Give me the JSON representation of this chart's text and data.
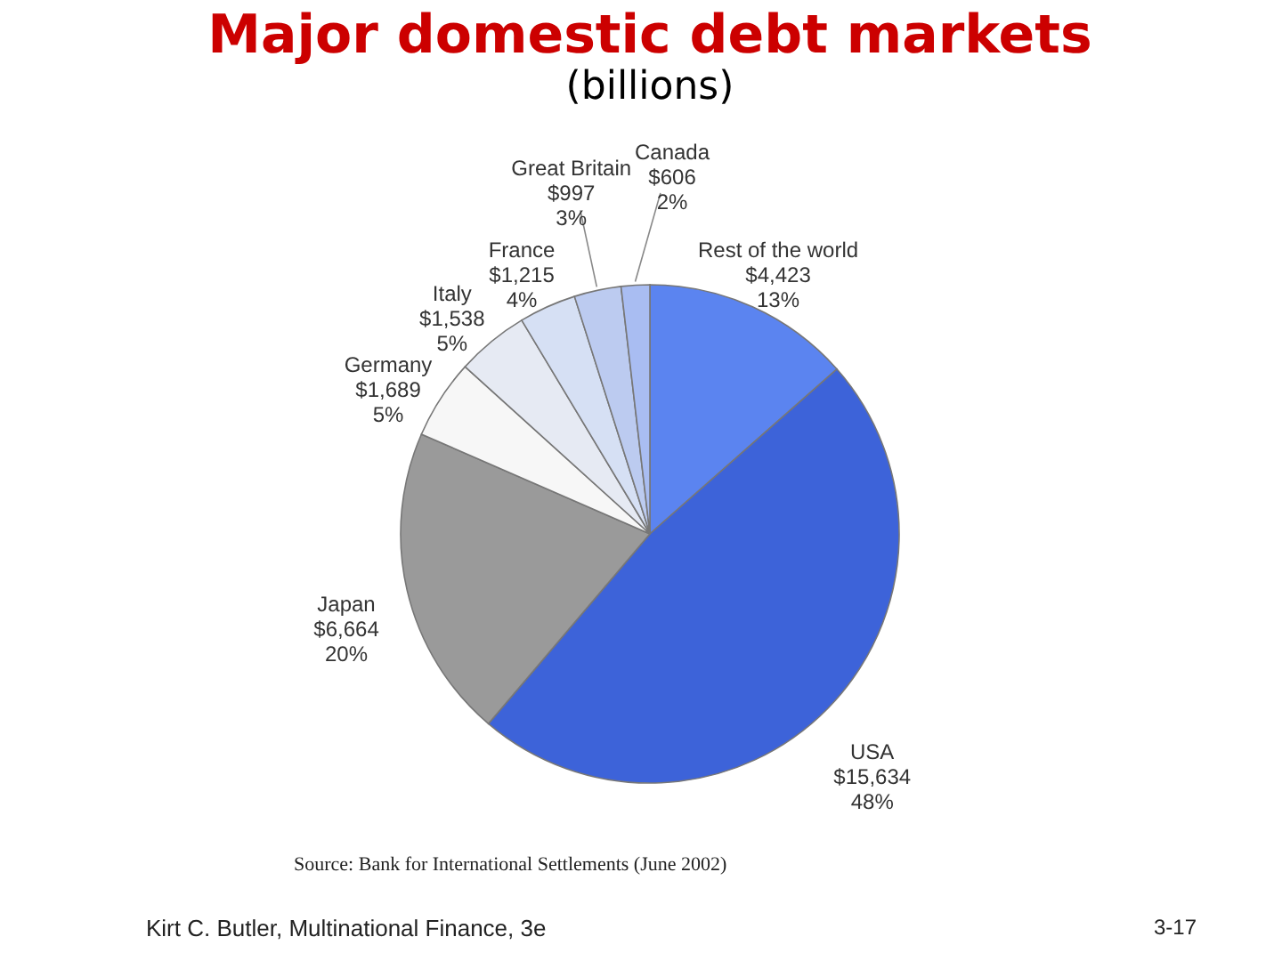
{
  "chart_data": {
    "type": "pie",
    "title": "Major domestic debt markets",
    "subtitle": "(billions)",
    "categories": [
      "Rest of the world",
      "USA",
      "Japan",
      "Germany",
      "Italy",
      "France",
      "Great Britain",
      "Canada"
    ],
    "values": [
      4423,
      15634,
      6664,
      1689,
      1538,
      1215,
      997,
      606
    ],
    "value_labels": [
      "$4,423\n13%",
      "$15,634\n48%",
      "$6,664\n20%",
      "$1,689\n5%",
      "$1,538\n5%",
      "$1,215\n4%",
      "$997\n3%",
      "$606\n2%"
    ],
    "colors": [
      "#5b84f0",
      "#3d63d9",
      "#9a9a9a",
      "#f7f7f7",
      "#e6eaf3",
      "#d6e0f4",
      "#bccbf0",
      "#a9bdf2"
    ],
    "annotations": [
      "Source: Bank for International Settlements (June 2002)",
      "Kirt C. Butler, Multinational Finance, 3e",
      "3-17"
    ]
  }
}
